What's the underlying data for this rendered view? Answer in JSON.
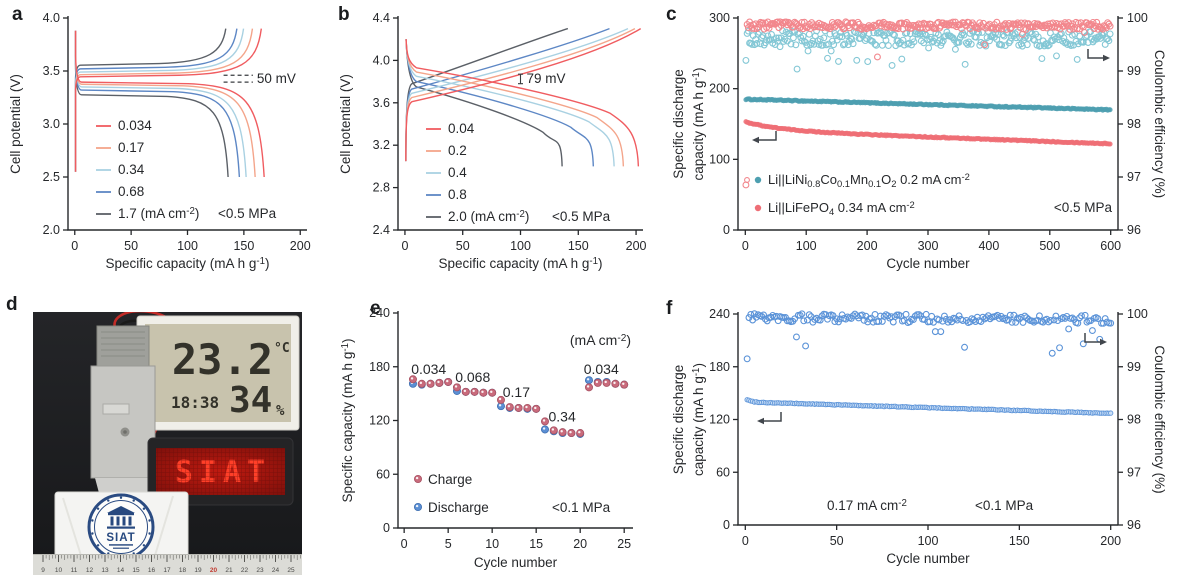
{
  "panel_labels": {
    "a": "a",
    "b": "b",
    "c": "c",
    "d": "d",
    "e": "e",
    "f": "f"
  },
  "chart_data": [
    {
      "panel": "a",
      "type": "line",
      "xlabel": "Specific capacity (mA h g^-1^)",
      "ylabel": "Cell potential (V)",
      "xlim": [
        0,
        200
      ],
      "xticks": [
        0,
        50,
        100,
        150,
        200
      ],
      "ylim": [
        2.0,
        4.0
      ],
      "ytick_labels": [
        "2.0",
        "2.5",
        "3.0",
        "3.5",
        "4.0"
      ],
      "yticks": [
        2.0,
        2.5,
        3.0,
        3.5,
        4.0
      ],
      "annotation": {
        "text": "50 mV",
        "upper_v": 3.46,
        "lower_v": 3.395,
        "x_start": 132,
        "x_end": 158
      },
      "pressure_label": "<0.5 MPa",
      "series": [
        {
          "label": "0.034",
          "color": "#f05c60",
          "capacity": 168,
          "charge_plateau_v": 3.445,
          "discharge_plateau_v": 3.395
        },
        {
          "label": "0.17",
          "color": "#f4a58b",
          "capacity": 160,
          "charge_plateau_v": 3.465,
          "discharge_plateau_v": 3.375
        },
        {
          "label": "0.34",
          "color": "#a9d1e2",
          "capacity": 152,
          "charge_plateau_v": 3.49,
          "discharge_plateau_v": 3.35
        },
        {
          "label": "0.68",
          "color": "#5d87c5",
          "capacity": 146,
          "charge_plateau_v": 3.52,
          "discharge_plateau_v": 3.32
        },
        {
          "label": "1.7 (mA cm^-2^)",
          "color": "#5b6067",
          "capacity": 136,
          "charge_plateau_v": 3.555,
          "discharge_plateau_v": 3.275
        }
      ]
    },
    {
      "panel": "b",
      "type": "line",
      "xlabel": "Specific capacity (mA h g^-1^)",
      "ylabel": "Cell potential (V)",
      "xlim": [
        0,
        200
      ],
      "xticks": [
        0,
        50,
        100,
        150,
        200
      ],
      "ylim": [
        2.4,
        4.4
      ],
      "ytick_labels": [
        "2.4",
        "2.8",
        "3.2",
        "3.6",
        "4.0",
        "4.4"
      ],
      "yticks": [
        2.4,
        2.8,
        3.2,
        3.6,
        4.0,
        4.4
      ],
      "annotation": {
        "text": "79 mV",
        "x": 100,
        "v_low": 3.78,
        "v_high": 3.87
      },
      "pressure_label": "<0.5 MPa",
      "series": [
        {
          "label": "0.04",
          "color": "#f05c60",
          "capacity": 202,
          "charge_end_capacity": 204,
          "charge_start_v": 3.58,
          "v_offset": 0
        },
        {
          "label": "0.2",
          "color": "#f4a58b",
          "capacity": 189,
          "charge_end_capacity": 199,
          "charge_start_v": 3.62,
          "v_offset": 0.04
        },
        {
          "label": "0.4",
          "color": "#a9d1e2",
          "capacity": 181,
          "charge_end_capacity": 193,
          "charge_start_v": 3.66,
          "v_offset": 0.08
        },
        {
          "label": "0.8",
          "color": "#5d87c5",
          "capacity": 163,
          "charge_end_capacity": 177,
          "charge_start_v": 3.7,
          "v_offset": 0.13
        },
        {
          "label": "2.0 (mA cm^-2^)",
          "color": "#5b6067",
          "capacity": 136,
          "charge_end_capacity": 141,
          "charge_start_v": 3.75,
          "v_offset": 0.18
        }
      ]
    },
    {
      "panel": "c",
      "type": "scatter",
      "xlabel": "Cycle number",
      "ylabel_left": [
        "Specific discharge",
        "capacity (mA h g^-1^)"
      ],
      "ylabel_right": "Coulombic efficiency (%)",
      "xlim": [
        0,
        600
      ],
      "xticks": [
        0,
        100,
        200,
        300,
        400,
        500,
        600
      ],
      "ylim_left": [
        0,
        300
      ],
      "yticks_left": [
        0,
        100,
        200,
        300
      ],
      "ylim_right": [
        96,
        100
      ],
      "yticks_right": [
        96,
        97,
        98,
        99,
        100
      ],
      "cycles": 600,
      "pressure_label": "<0.5 MPa",
      "legend": [
        {
          "label": "Li||LiNi_0.8_Co_0.1_Mn_0.1_O_2_ 0.2 mA cm^-2^",
          "color": "#4d9fb0",
          "extra_marker_color": "#f2878d"
        },
        {
          "label": "Li||LiFePO_4_ 0.34 mA cm^-2^",
          "color": "#ee6e76"
        }
      ],
      "series": [
        {
          "id": "nmc-capacity",
          "axis": "left",
          "marker": "filled",
          "color": "#4d9fb0",
          "start": 185,
          "end": 170,
          "noise": 1.6
        },
        {
          "id": "lfp-capacity",
          "axis": "left",
          "marker": "filled",
          "color": "#ee6e76",
          "start": 153,
          "end": 122,
          "initial_drop": 12,
          "noise": 1.4
        },
        {
          "id": "nmc-ce",
          "axis": "right",
          "marker": "open",
          "color": "#83c7d5",
          "start": 99.63,
          "end": 99.6,
          "noise": 0.28,
          "dip_rate": 0.05,
          "first": 99.2
        },
        {
          "id": "lfp-ce",
          "axis": "right",
          "marker": "open",
          "color": "#f2878d",
          "start": 99.86,
          "end": 99.85,
          "noise": 0.14,
          "dip_rate": 0.025,
          "first": 96.85
        }
      ]
    },
    {
      "panel": "e",
      "type": "scatter",
      "xlabel": "Cycle number",
      "ylabel": "Specific capacity (mA h g^-1^)",
      "xlim": [
        0,
        25
      ],
      "xticks": [
        0,
        5,
        10,
        15,
        20,
        25
      ],
      "ylim": [
        0,
        240
      ],
      "yticks": [
        0,
        60,
        120,
        180,
        240
      ],
      "unit_label": "(mA cm^-2^)",
      "pressure_label": "<0.1 MPa",
      "legend": [
        {
          "label": "Charge",
          "color": "#c96b7c",
          "stroke": "#a85263"
        },
        {
          "label": "Discharge",
          "color": "#5b8fd4",
          "stroke": "#3f6fb0"
        }
      ],
      "charge": [
        166,
        161,
        161,
        162,
        163,
        157,
        152,
        152,
        151,
        151,
        143,
        135,
        134,
        134,
        133,
        119,
        109,
        107,
        106,
        106,
        157,
        162,
        162,
        161,
        160
      ],
      "discharge": [
        161,
        160,
        161,
        162,
        163,
        153,
        152,
        152,
        151,
        151,
        136,
        134,
        134,
        133,
        133,
        110,
        108,
        106,
        106,
        105,
        165,
        163,
        163,
        161,
        160
      ],
      "rate_labels": [
        {
          "text": "0.034",
          "x": 0.8,
          "y": 172
        },
        {
          "text": "0.068",
          "x": 5.8,
          "y": 163
        },
        {
          "text": "0.17",
          "x": 11.2,
          "y": 146
        },
        {
          "text": "0.34",
          "x": 16.4,
          "y": 119
        },
        {
          "text": "0.034",
          "x": 20.4,
          "y": 172
        }
      ]
    },
    {
      "panel": "f",
      "type": "scatter",
      "xlabel": "Cycle number",
      "ylabel_left": [
        "Specific discharge",
        "capacity (mA h g^-1^)"
      ],
      "ylabel_right": "Coulombic efficiency (%)",
      "xlim": [
        0,
        200
      ],
      "xticks": [
        0,
        50,
        100,
        150,
        200
      ],
      "ylim_left": [
        0,
        240
      ],
      "yticks_left": [
        0,
        60,
        120,
        180,
        240
      ],
      "ylim_right": [
        96,
        100
      ],
      "yticks_right": [
        96,
        97,
        98,
        99,
        100
      ],
      "cycles": 200,
      "rate_label": "0.17 mA cm^-2^",
      "pressure_label": "<0.1 MPa",
      "series": [
        {
          "id": "capacity",
          "axis": "left",
          "marker": "light-filled",
          "color": "#5b93d8",
          "fill": "#cfe2f8",
          "start": 140,
          "end": 127,
          "first_boost": 4,
          "noise": 0.8
        },
        {
          "id": "ce",
          "axis": "right",
          "marker": "open",
          "color": "#5b93d8",
          "start": 99.93,
          "end": 99.9,
          "noise": 0.16,
          "dip_rate": 0.03,
          "first": 99.15,
          "dip_cycles": [
            33,
            168,
            172,
            185
          ]
        }
      ]
    }
  ],
  "photo": {
    "temperature": "23.2",
    "temperature_unit": "°C",
    "time": "18:38",
    "humidity": "34",
    "humidity_unit": "%",
    "led_text": "SIAT",
    "logo_text": "SIAT",
    "ruler_numbers": [
      "9",
      "10",
      "11",
      "12",
      "13",
      "14",
      "15",
      "16",
      "17",
      "18",
      "19",
      "20",
      "21",
      "22",
      "23",
      "24",
      "25"
    ],
    "ruler_highlight": "20"
  }
}
